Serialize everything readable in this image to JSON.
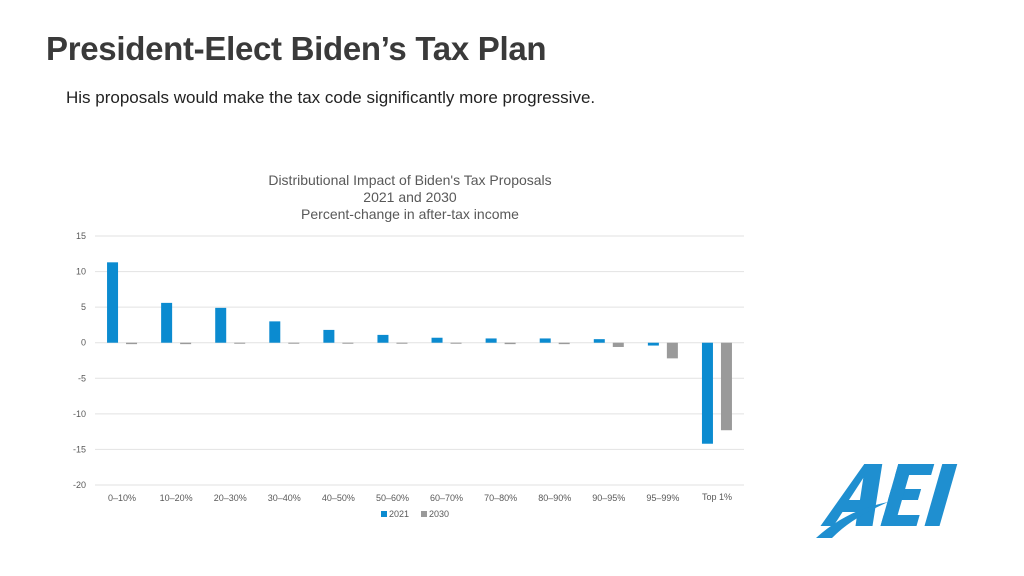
{
  "slide": {
    "title": "President-Elect Biden’s Tax Plan",
    "subtitle": "His proposals would make the tax code significantly more progressive."
  },
  "logo": {
    "text": "AEI"
  },
  "colors": {
    "series_2021": "#0b8bd0",
    "series_2030": "#9a9a9a",
    "logo": "#1f8fd0",
    "gridline": "#e2e2e2",
    "text": "#595959"
  },
  "chart_data": {
    "type": "bar",
    "title": [
      "Distributional Impact of Biden's Tax Proposals",
      "2021 and 2030",
      "Percent-change in after-tax income"
    ],
    "categories": [
      "0–10%",
      "10–20%",
      "20–30%",
      "30–40%",
      "40–50%",
      "50–60%",
      "60–70%",
      "70–80%",
      "80–90%",
      "90–95%",
      "95–99%",
      "Top 1%"
    ],
    "series": [
      {
        "name": "2021",
        "values": [
          11.3,
          5.6,
          4.9,
          3.0,
          1.8,
          1.1,
          0.7,
          0.6,
          0.6,
          0.5,
          -0.4,
          -14.2
        ]
      },
      {
        "name": "2030",
        "values": [
          -0.2,
          -0.2,
          -0.1,
          -0.1,
          -0.1,
          -0.1,
          -0.1,
          -0.2,
          -0.2,
          -0.6,
          -2.2,
          -12.3
        ]
      }
    ],
    "yticks": [
      "15",
      "10",
      "5",
      "0",
      "-5",
      "-10",
      "-15",
      "-20"
    ],
    "ylim": [
      -20,
      15
    ],
    "xlabel": "",
    "ylabel": "",
    "grid": true,
    "legend": "bottom-center"
  }
}
